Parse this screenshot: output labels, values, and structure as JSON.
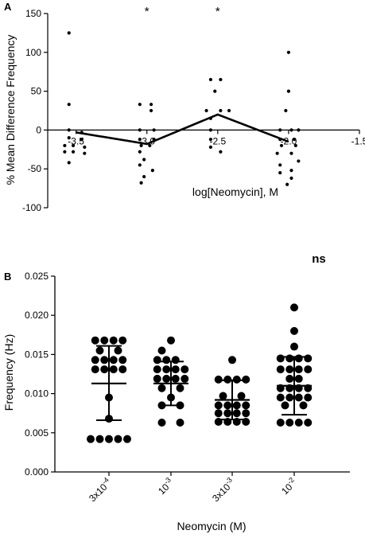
{
  "chart_data": [
    {
      "panel": "A",
      "type": "scatter",
      "title": "",
      "xlabel": "log[Neomycin], M",
      "ylabel": "% Mean Difference Frequency",
      "xlim": [
        -3.7,
        -1.5
      ],
      "ylim": [
        -100,
        150
      ],
      "xticks": [
        -3.5,
        -3.0,
        -2.5,
        -2.0,
        -1.5
      ],
      "xtick_labels": [
        "-3.5",
        "-3.0",
        "-2.5",
        "-2.0",
        "-1.5"
      ],
      "yticks": [
        -100,
        -50,
        0,
        50,
        100,
        150
      ],
      "ytick_labels": [
        "-100",
        "-50",
        "0",
        "50",
        "100",
        "150"
      ],
      "grid": false,
      "significance": [
        {
          "x": -3.0,
          "label": "*"
        },
        {
          "x": -2.5,
          "label": "*"
        }
      ],
      "points": [
        {
          "x": -3.55,
          "y": 125
        },
        {
          "x": -3.55,
          "y": 33
        },
        {
          "x": -3.55,
          "y": 0
        },
        {
          "x": -3.55,
          "y": -10
        },
        {
          "x": -3.58,
          "y": -20
        },
        {
          "x": -3.52,
          "y": -20
        },
        {
          "x": -3.58,
          "y": -28
        },
        {
          "x": -3.52,
          "y": -28
        },
        {
          "x": -3.55,
          "y": -42
        },
        {
          "x": -3.46,
          "y": -3
        },
        {
          "x": -3.46,
          "y": -12
        },
        {
          "x": -3.44,
          "y": -22
        },
        {
          "x": -3.44,
          "y": -30
        },
        {
          "x": -3.05,
          "y": 33
        },
        {
          "x": -2.97,
          "y": 33
        },
        {
          "x": -2.97,
          "y": 25
        },
        {
          "x": -3.05,
          "y": 0
        },
        {
          "x": -2.95,
          "y": 0
        },
        {
          "x": -3.05,
          "y": -12
        },
        {
          "x": -2.95,
          "y": -12
        },
        {
          "x": -3.04,
          "y": -20
        },
        {
          "x": -2.98,
          "y": -20
        },
        {
          "x": -3.05,
          "y": -28
        },
        {
          "x": -3.02,
          "y": -38
        },
        {
          "x": -3.05,
          "y": -45
        },
        {
          "x": -2.96,
          "y": -52
        },
        {
          "x": -3.02,
          "y": -60
        },
        {
          "x": -3.04,
          "y": -68
        },
        {
          "x": -2.55,
          "y": 65
        },
        {
          "x": -2.48,
          "y": 65
        },
        {
          "x": -2.52,
          "y": 50
        },
        {
          "x": -2.58,
          "y": 25
        },
        {
          "x": -2.48,
          "y": 25
        },
        {
          "x": -2.42,
          "y": 25
        },
        {
          "x": -2.55,
          "y": 15
        },
        {
          "x": -2.55,
          "y": 0
        },
        {
          "x": -2.55,
          "y": -12
        },
        {
          "x": -2.55,
          "y": -22
        },
        {
          "x": -2.48,
          "y": -28
        },
        {
          "x": -2.0,
          "y": 100
        },
        {
          "x": -2.0,
          "y": 50
        },
        {
          "x": -2.02,
          "y": 25
        },
        {
          "x": -2.06,
          "y": 0
        },
        {
          "x": -1.98,
          "y": 0
        },
        {
          "x": -1.93,
          "y": 0
        },
        {
          "x": -2.06,
          "y": -12
        },
        {
          "x": -1.96,
          "y": -12
        },
        {
          "x": -2.05,
          "y": -20
        },
        {
          "x": -1.95,
          "y": -20
        },
        {
          "x": -2.08,
          "y": -30
        },
        {
          "x": -1.98,
          "y": -30
        },
        {
          "x": -2.06,
          "y": -45
        },
        {
          "x": -1.93,
          "y": -40
        },
        {
          "x": -2.06,
          "y": -55
        },
        {
          "x": -1.98,
          "y": -52
        },
        {
          "x": -1.98,
          "y": -62
        },
        {
          "x": -2.01,
          "y": -70
        }
      ],
      "mean_line": {
        "x": [
          -3.5,
          -3.0,
          -2.5,
          -2.0
        ],
        "y": [
          -3,
          -18,
          20,
          -15
        ]
      }
    },
    {
      "panel": "B",
      "type": "scatter",
      "title": "",
      "xlabel": "Neomycin (M)",
      "ylabel": "Frequency (Hz)",
      "ylim": [
        0,
        0.025
      ],
      "yticks": [
        0,
        0.005,
        0.01,
        0.015,
        0.02,
        0.025
      ],
      "ytick_labels": [
        "0.000",
        "0.005",
        "0.010",
        "0.015",
        "0.020",
        "0.025"
      ],
      "grid": false,
      "significance_label": "ns",
      "categories": [
        {
          "base": "3x10",
          "exp": "-4"
        },
        {
          "base": "10",
          "exp": "-3"
        },
        {
          "base": "3x10",
          "exp": "-3"
        },
        {
          "base": "10",
          "exp": "-2"
        }
      ],
      "groups": [
        {
          "mean": 0.0113,
          "err_low": 0.0066,
          "err_high": 0.0161,
          "points": [
            [
              -1.5,
              0.0168
            ],
            [
              -0.5,
              0.0168
            ],
            [
              0.5,
              0.0168
            ],
            [
              1.5,
              0.0168
            ],
            [
              -1,
              0.0155
            ],
            [
              1,
              0.0155
            ],
            [
              -1.5,
              0.0143
            ],
            [
              -0.5,
              0.0143
            ],
            [
              0.5,
              0.0143
            ],
            [
              1.5,
              0.0143
            ],
            [
              -1.5,
              0.0131
            ],
            [
              -0.5,
              0.0131
            ],
            [
              0.5,
              0.0131
            ],
            [
              1.5,
              0.0131
            ],
            [
              0,
              0.0095
            ],
            [
              0,
              0.0068
            ],
            [
              -2,
              0.0042
            ],
            [
              -1,
              0.0042
            ],
            [
              0,
              0.0042
            ],
            [
              1,
              0.0042
            ],
            [
              2,
              0.0042
            ]
          ]
        },
        {
          "mean": 0.0113,
          "err_low": 0.0085,
          "err_high": 0.0141,
          "points": [
            [
              0,
              0.0168
            ],
            [
              -1,
              0.0155
            ],
            [
              -1.5,
              0.0143
            ],
            [
              -0.5,
              0.0143
            ],
            [
              0.5,
              0.0143
            ],
            [
              -1.5,
              0.0131
            ],
            [
              -0.5,
              0.0131
            ],
            [
              0.5,
              0.0131
            ],
            [
              1.5,
              0.0131
            ],
            [
              -1.5,
              0.0119
            ],
            [
              -0.5,
              0.0119
            ],
            [
              0.5,
              0.0119
            ],
            [
              1.5,
              0.0119
            ],
            [
              -1,
              0.0107
            ],
            [
              1,
              0.0107
            ],
            [
              0,
              0.0095
            ],
            [
              -1,
              0.0085
            ],
            [
              1,
              0.0085
            ],
            [
              -1,
              0.0063
            ],
            [
              1,
              0.0063
            ]
          ]
        },
        {
          "mean": 0.0092,
          "err_low": 0.0067,
          "err_high": 0.0117,
          "points": [
            [
              0,
              0.0143
            ],
            [
              -1.5,
              0.0118
            ],
            [
              -0.5,
              0.0118
            ],
            [
              0.5,
              0.0118
            ],
            [
              1.5,
              0.0118
            ],
            [
              -1,
              0.0097
            ],
            [
              1,
              0.0097
            ],
            [
              -1.5,
              0.0085
            ],
            [
              -0.5,
              0.0085
            ],
            [
              0.5,
              0.0085
            ],
            [
              1.5,
              0.0085
            ],
            [
              -1.5,
              0.0075
            ],
            [
              -0.5,
              0.0075
            ],
            [
              0.5,
              0.0075
            ],
            [
              1.5,
              0.0075
            ],
            [
              -1.5,
              0.0064
            ],
            [
              -0.5,
              0.0064
            ],
            [
              0.5,
              0.0064
            ],
            [
              1.5,
              0.0064
            ]
          ]
        },
        {
          "mean": 0.011,
          "err_low": 0.0073,
          "err_high": 0.0147,
          "points": [
            [
              0,
              0.021
            ],
            [
              0,
              0.018
            ],
            [
              0,
              0.016
            ],
            [
              -1.5,
              0.0145
            ],
            [
              -0.5,
              0.0145
            ],
            [
              0.5,
              0.0145
            ],
            [
              1.5,
              0.0145
            ],
            [
              -1.5,
              0.0131
            ],
            [
              -0.5,
              0.0131
            ],
            [
              0.5,
              0.0131
            ],
            [
              1.5,
              0.0131
            ],
            [
              -0.5,
              0.0119
            ],
            [
              0.5,
              0.0119
            ],
            [
              -1.5,
              0.0107
            ],
            [
              -0.5,
              0.0107
            ],
            [
              0.5,
              0.0107
            ],
            [
              1.5,
              0.0107
            ],
            [
              -1.5,
              0.0095
            ],
            [
              -0.5,
              0.0095
            ],
            [
              0.5,
              0.0095
            ],
            [
              1.5,
              0.0095
            ],
            [
              -1,
              0.0085
            ],
            [
              1,
              0.0085
            ],
            [
              -1.5,
              0.0063
            ],
            [
              -0.5,
              0.0063
            ],
            [
              0.5,
              0.0063
            ],
            [
              1.5,
              0.0063
            ]
          ]
        }
      ]
    }
  ]
}
